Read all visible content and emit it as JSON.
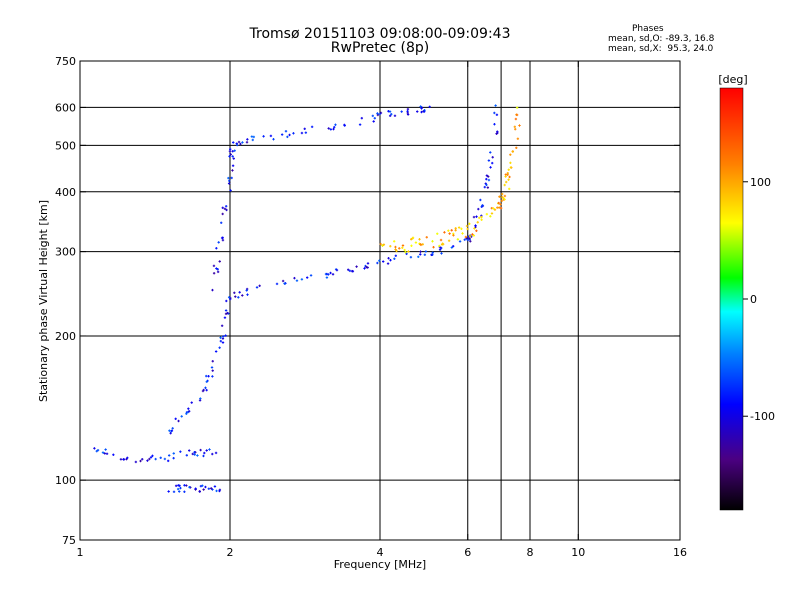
{
  "header": {
    "title_line1": "Tromsø 20151103 09:08:00-09:09:43",
    "title_line2": "RwPretec (8p)",
    "stats_heading": "Phases",
    "stats_o": "mean, sd,O: -89.3, 16.8",
    "stats_x": "mean, sd,X:  95.3, 24.0"
  },
  "chart_data": {
    "type": "scatter",
    "xlabel": "Frequency [MHz]",
    "ylabel": "Stationary phase Virtual Height [km]",
    "x_scale": "log",
    "y_scale": "log",
    "xlim": [
      1,
      16
    ],
    "ylim": [
      75,
      750
    ],
    "x_ticks": [
      1,
      2,
      4,
      6,
      8,
      10,
      16
    ],
    "x_tick_labels": [
      "1",
      "2",
      "4",
      "6",
      "8",
      "10",
      "16"
    ],
    "x_gridlines": [
      2,
      4,
      6,
      7,
      8,
      10
    ],
    "y_ticks": [
      75,
      100,
      200,
      300,
      400,
      500,
      600,
      750
    ],
    "y_tick_labels": [
      "75",
      "100",
      "200",
      "300",
      "400",
      "500",
      "600",
      "750"
    ],
    "y_gridlines": [
      100,
      200,
      300,
      400,
      500,
      600
    ],
    "colorbar": {
      "label": "[deg]",
      "range": [
        -180,
        180
      ],
      "ticks": [
        100,
        0,
        -100
      ],
      "tick_labels": [
        "100",
        "0",
        "-100"
      ]
    },
    "series": [
      {
        "mode": "O",
        "phase_mean": -89.3,
        "traces": [
          {
            "x": [
              1.06,
              1.15,
              1.3,
              1.45,
              1.6,
              1.75,
              1.9
            ],
            "y": [
              118,
              113,
              110,
              111,
              113,
              114,
              115
            ]
          },
          {
            "x": [
              1.5,
              1.6,
              1.7,
              1.8,
              1.88,
              1.93,
              1.97
            ],
            "y": [
              125,
              135,
              145,
              160,
              180,
              200,
              225
            ]
          },
          {
            "x": [
              1.97,
              2.1,
              2.4,
              2.8,
              3.2,
              3.6,
              4.0,
              4.4,
              5.0,
              5.5,
              6.0,
              6.2,
              6.4,
              6.6,
              6.8,
              6.9
            ],
            "y": [
              240,
              245,
              253,
              262,
              270,
              278,
              285,
              292,
              298,
              305,
              320,
              340,
              380,
              430,
              520,
              620
            ]
          },
          {
            "x": [
              1.85,
              1.9,
              1.95,
              2.0,
              2.02,
              2.05
            ],
            "y": [
              250,
              300,
              360,
              420,
              480,
              520
            ]
          },
          {
            "x": [
              2.0,
              2.2,
              2.6,
              3.0,
              3.6,
              4.0,
              4.4,
              4.8,
              5.0
            ],
            "y": [
              505,
              515,
              528,
              540,
              558,
              575,
              585,
              595,
              600
            ]
          },
          {
            "x": [
              1.5,
              1.6,
              1.7,
              1.8,
              1.9
            ],
            "y": [
              96,
              96,
              96,
              96,
              96
            ]
          }
        ]
      },
      {
        "mode": "X",
        "phase_mean": 95.3,
        "traces": [
          {
            "x": [
              4.0,
              4.4,
              5.0,
              5.6,
              6.2,
              6.8,
              7.1,
              7.3,
              7.5,
              7.6
            ],
            "y": [
              305,
              312,
              320,
              330,
              345,
              370,
              400,
              450,
              520,
              620
            ]
          },
          {
            "x": [
              4.2,
              4.6,
              5.2,
              5.8,
              6.5,
              7.0,
              7.4
            ],
            "y": [
              300,
              305,
              312,
              320,
              340,
              380,
              450
            ]
          }
        ]
      }
    ]
  }
}
